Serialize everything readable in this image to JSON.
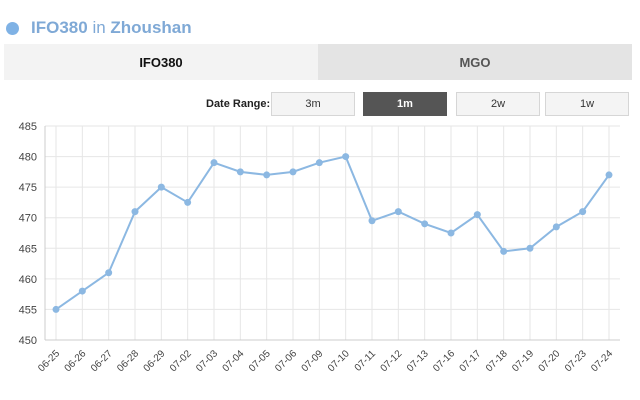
{
  "header": {
    "title_bold": "IFO380",
    "title_in": "in",
    "title_place": "Zhoushan"
  },
  "tabs": [
    {
      "label": "IFO380",
      "active": true
    },
    {
      "label": "MGO",
      "active": false
    }
  ],
  "date_range": {
    "label": "Date Range:",
    "buttons": [
      {
        "label": "3m",
        "active": false
      },
      {
        "label": "1m",
        "active": true
      },
      {
        "label": "2w",
        "active": false
      },
      {
        "label": "1w",
        "active": false
      }
    ]
  },
  "colors": {
    "accent": "#7fb2e5",
    "line": "#8cb8e2",
    "grid": "#e6e6e6"
  },
  "chart_data": {
    "type": "line",
    "title": "",
    "xlabel": "",
    "ylabel": "",
    "categories": [
      "06-25",
      "06-26",
      "06-27",
      "06-28",
      "06-29",
      "07-02",
      "07-03",
      "07-04",
      "07-05",
      "07-06",
      "07-09",
      "07-10",
      "07-11",
      "07-12",
      "07-13",
      "07-16",
      "07-17",
      "07-18",
      "07-19",
      "07-20",
      "07-23",
      "07-24"
    ],
    "series": [
      {
        "values": [
          455,
          458,
          461,
          471,
          475,
          472.5,
          479,
          477.5,
          477,
          477.5,
          479,
          480,
          469.5,
          471,
          469,
          467.5,
          470.5,
          464.5,
          465,
          468.5,
          471,
          477
        ]
      }
    ],
    "ylim": [
      450,
      485
    ],
    "yticks": [
      450,
      455,
      460,
      465,
      470,
      475,
      480,
      485
    ],
    "grid": true,
    "legend": "none"
  }
}
